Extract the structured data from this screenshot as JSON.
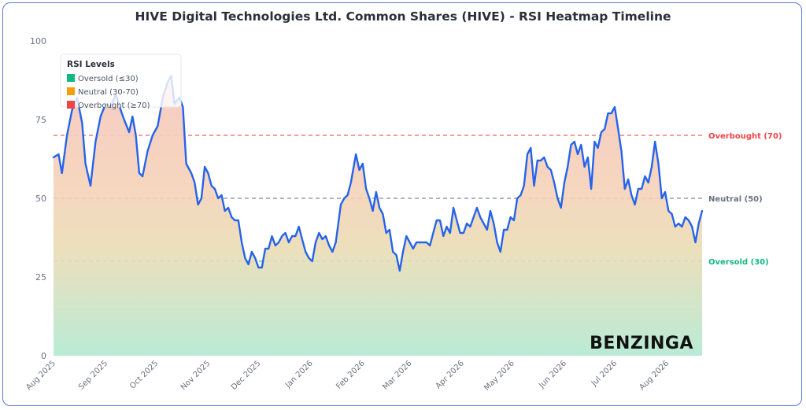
{
  "chart_data": {
    "type": "line",
    "title": "HIVE Digital Technologies Ltd. Common Shares (HIVE) - RSI Heatmap Timeline",
    "ylim": [
      0,
      100
    ],
    "yticks": [
      0,
      25,
      50,
      75,
      100
    ],
    "xlim": [
      "2025-08-01",
      "2026-08-22"
    ],
    "xticks": [
      {
        "label": "Aug 2025",
        "date": "2025-08-01"
      },
      {
        "label": "Sep 2025",
        "date": "2025-09-01"
      },
      {
        "label": "Oct 2025",
        "date": "2025-10-01"
      },
      {
        "label": "Nov 2025",
        "date": "2025-11-01"
      },
      {
        "label": "Dec 2025",
        "date": "2025-12-01"
      },
      {
        "label": "Jan 2026",
        "date": "2026-01-01"
      },
      {
        "label": "Feb 2026",
        "date": "2026-02-01"
      },
      {
        "label": "Mar 2026",
        "date": "2026-03-01"
      },
      {
        "label": "Apr 2026",
        "date": "2026-04-01"
      },
      {
        "label": "May 2026",
        "date": "2026-05-01"
      },
      {
        "label": "Jun 2026",
        "date": "2026-06-01"
      },
      {
        "label": "Jul 2026",
        "date": "2026-07-01"
      },
      {
        "label": "Aug 2026",
        "date": "2026-08-01"
      }
    ],
    "reference_lines": [
      {
        "value": 70,
        "label": "Overbought (70)",
        "color": "#ef4444"
      },
      {
        "value": 50,
        "label": "Neutral (50)",
        "color": "#6b7280"
      },
      {
        "value": 30,
        "label": "Oversold (30)",
        "color": "#10b981"
      }
    ],
    "legend": {
      "title": "RSI Levels",
      "position": "top-left",
      "items": [
        {
          "label": "Oversold (≤30)",
          "color": "#10b981"
        },
        {
          "label": "Neutral (30-70)",
          "color": "#f59e0b"
        },
        {
          "label": "Overbought (≥70)",
          "color": "#ef4444"
        }
      ]
    },
    "series": [
      {
        "color": "#2563eb",
        "points": [
          [
            "2025-08-01",
            63
          ],
          [
            "2025-08-04",
            64
          ],
          [
            "2025-08-06",
            58
          ],
          [
            "2025-08-09",
            70
          ],
          [
            "2025-08-12",
            78
          ],
          [
            "2025-08-15",
            82
          ],
          [
            "2025-08-18",
            74
          ],
          [
            "2025-08-20",
            61
          ],
          [
            "2025-08-23",
            54
          ],
          [
            "2025-08-26",
            68
          ],
          [
            "2025-08-29",
            76
          ],
          [
            "2025-09-01",
            80
          ],
          [
            "2025-09-04",
            79
          ],
          [
            "2025-09-07",
            83
          ],
          [
            "2025-09-10",
            78
          ],
          [
            "2025-09-12",
            75
          ],
          [
            "2025-09-15",
            71
          ],
          [
            "2025-09-17",
            76
          ],
          [
            "2025-09-19",
            70
          ],
          [
            "2025-09-21",
            58
          ],
          [
            "2025-09-23",
            57
          ],
          [
            "2025-09-26",
            65
          ],
          [
            "2025-09-29",
            70
          ],
          [
            "2025-10-02",
            73
          ],
          [
            "2025-10-05",
            82
          ],
          [
            "2025-10-08",
            87
          ],
          [
            "2025-10-10",
            89
          ],
          [
            "2025-10-12",
            80
          ],
          [
            "2025-10-15",
            82
          ],
          [
            "2025-10-17",
            79
          ],
          [
            "2025-10-19",
            61
          ],
          [
            "2025-10-22",
            58
          ],
          [
            "2025-10-24",
            55
          ],
          [
            "2025-10-26",
            48
          ],
          [
            "2025-10-28",
            50
          ],
          [
            "2025-10-30",
            60
          ],
          [
            "2025-11-01",
            58
          ],
          [
            "2025-11-03",
            54
          ],
          [
            "2025-11-05",
            53
          ],
          [
            "2025-11-07",
            50
          ],
          [
            "2025-11-09",
            51
          ],
          [
            "2025-11-11",
            46
          ],
          [
            "2025-11-13",
            47
          ],
          [
            "2025-11-15",
            44
          ],
          [
            "2025-11-17",
            43
          ],
          [
            "2025-11-19",
            43
          ],
          [
            "2025-11-21",
            36
          ],
          [
            "2025-11-23",
            31
          ],
          [
            "2025-11-25",
            29
          ],
          [
            "2025-11-27",
            33
          ],
          [
            "2025-11-29",
            31
          ],
          [
            "2025-12-01",
            28
          ],
          [
            "2025-12-03",
            28
          ],
          [
            "2025-12-05",
            34
          ],
          [
            "2025-12-07",
            34
          ],
          [
            "2025-12-09",
            38
          ],
          [
            "2025-12-11",
            35
          ],
          [
            "2025-12-13",
            36
          ],
          [
            "2025-12-15",
            38
          ],
          [
            "2025-12-17",
            39
          ],
          [
            "2025-12-19",
            36
          ],
          [
            "2025-12-21",
            38
          ],
          [
            "2025-12-23",
            38
          ],
          [
            "2025-12-25",
            41
          ],
          [
            "2025-12-27",
            37
          ],
          [
            "2025-12-29",
            33
          ],
          [
            "2025-12-31",
            31
          ],
          [
            "2026-01-02",
            30
          ],
          [
            "2026-01-04",
            36
          ],
          [
            "2026-01-06",
            39
          ],
          [
            "2026-01-08",
            37
          ],
          [
            "2026-01-10",
            38
          ],
          [
            "2026-01-12",
            35
          ],
          [
            "2026-01-14",
            33
          ],
          [
            "2026-01-16",
            36
          ],
          [
            "2026-01-19",
            48
          ],
          [
            "2026-01-21",
            50
          ],
          [
            "2026-01-23",
            51
          ],
          [
            "2026-01-25",
            55
          ],
          [
            "2026-01-28",
            64
          ],
          [
            "2026-01-30",
            59
          ],
          [
            "2026-02-01",
            61
          ],
          [
            "2026-02-03",
            53
          ],
          [
            "2026-02-05",
            50
          ],
          [
            "2026-02-07",
            46
          ],
          [
            "2026-02-09",
            52
          ],
          [
            "2026-02-11",
            47
          ],
          [
            "2026-02-13",
            45
          ],
          [
            "2026-02-15",
            39
          ],
          [
            "2026-02-17",
            40
          ],
          [
            "2026-02-19",
            33
          ],
          [
            "2026-02-21",
            32
          ],
          [
            "2026-02-23",
            27
          ],
          [
            "2026-02-25",
            33
          ],
          [
            "2026-02-27",
            38
          ],
          [
            "2026-03-01",
            36
          ],
          [
            "2026-03-03",
            34
          ],
          [
            "2026-03-05",
            36
          ],
          [
            "2026-03-07",
            36
          ],
          [
            "2026-03-09",
            36
          ],
          [
            "2026-03-11",
            36
          ],
          [
            "2026-03-13",
            35
          ],
          [
            "2026-03-15",
            39
          ],
          [
            "2026-03-17",
            43
          ],
          [
            "2026-03-19",
            43
          ],
          [
            "2026-03-21",
            38
          ],
          [
            "2026-03-23",
            41
          ],
          [
            "2026-03-25",
            39
          ],
          [
            "2026-03-27",
            47
          ],
          [
            "2026-03-29",
            43
          ],
          [
            "2026-03-31",
            39
          ],
          [
            "2026-04-02",
            39
          ],
          [
            "2026-04-04",
            42
          ],
          [
            "2026-04-06",
            41
          ],
          [
            "2026-04-08",
            44
          ],
          [
            "2026-04-10",
            47
          ],
          [
            "2026-04-12",
            44
          ],
          [
            "2026-04-14",
            42
          ],
          [
            "2026-04-16",
            40
          ],
          [
            "2026-04-18",
            46
          ],
          [
            "2026-04-20",
            42
          ],
          [
            "2026-04-22",
            36
          ],
          [
            "2026-04-24",
            33
          ],
          [
            "2026-04-26",
            40
          ],
          [
            "2026-04-28",
            40
          ],
          [
            "2026-04-30",
            44
          ],
          [
            "2026-05-02",
            43
          ],
          [
            "2026-05-04",
            50
          ],
          [
            "2026-05-06",
            51
          ],
          [
            "2026-05-08",
            54
          ],
          [
            "2026-05-10",
            64
          ],
          [
            "2026-05-12",
            66
          ],
          [
            "2026-05-14",
            54
          ],
          [
            "2026-05-16",
            62
          ],
          [
            "2026-05-18",
            62
          ],
          [
            "2026-05-20",
            63
          ],
          [
            "2026-05-22",
            60
          ],
          [
            "2026-05-24",
            59
          ],
          [
            "2026-05-26",
            55
          ],
          [
            "2026-05-28",
            50
          ],
          [
            "2026-05-30",
            47
          ],
          [
            "2026-06-01",
            55
          ],
          [
            "2026-06-03",
            60
          ],
          [
            "2026-06-05",
            67
          ],
          [
            "2026-06-07",
            68
          ],
          [
            "2026-06-09",
            64
          ],
          [
            "2026-06-11",
            67
          ],
          [
            "2026-06-13",
            60
          ],
          [
            "2026-06-15",
            63
          ],
          [
            "2026-06-17",
            53
          ],
          [
            "2026-06-19",
            68
          ],
          [
            "2026-06-21",
            66
          ],
          [
            "2026-06-23",
            71
          ],
          [
            "2026-06-25",
            72
          ],
          [
            "2026-06-27",
            77
          ],
          [
            "2026-06-29",
            77
          ],
          [
            "2026-07-01",
            79
          ],
          [
            "2026-07-03",
            72
          ],
          [
            "2026-07-05",
            65
          ],
          [
            "2026-07-07",
            53
          ],
          [
            "2026-07-09",
            56
          ],
          [
            "2026-07-11",
            51
          ],
          [
            "2026-07-13",
            48
          ],
          [
            "2026-07-15",
            53
          ],
          [
            "2026-07-17",
            53
          ],
          [
            "2026-07-19",
            57
          ],
          [
            "2026-07-21",
            55
          ],
          [
            "2026-07-23",
            60
          ],
          [
            "2026-07-25",
            68
          ],
          [
            "2026-07-27",
            61
          ],
          [
            "2026-07-29",
            50
          ],
          [
            "2026-07-31",
            52
          ],
          [
            "2026-08-02",
            46
          ],
          [
            "2026-08-04",
            45
          ],
          [
            "2026-08-06",
            41
          ],
          [
            "2026-08-08",
            42
          ],
          [
            "2026-08-10",
            41
          ],
          [
            "2026-08-12",
            44
          ],
          [
            "2026-08-14",
            43
          ],
          [
            "2026-08-16",
            41
          ],
          [
            "2026-08-18",
            36
          ],
          [
            "2026-08-20",
            42
          ],
          [
            "2026-08-22",
            46
          ]
        ]
      }
    ],
    "annotations": [
      "BENZINGA"
    ]
  }
}
